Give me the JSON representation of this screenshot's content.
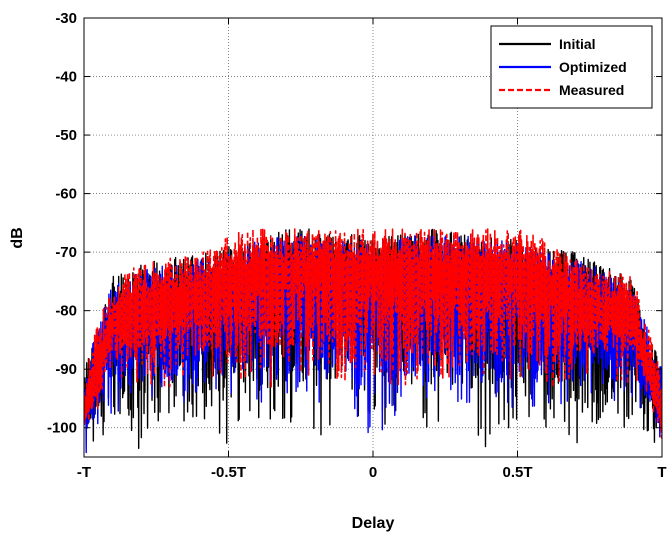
{
  "chart_data": {
    "type": "line",
    "title": "",
    "xlabel": "Delay",
    "ylabel": "dB",
    "xlim": [
      -1,
      1
    ],
    "ylim": [
      -105,
      -30
    ],
    "x_ticks": [
      -1,
      -0.5,
      0,
      0.5,
      1
    ],
    "x_tick_labels": [
      "-T",
      "-0.5T",
      "0",
      "0.5T",
      "T"
    ],
    "y_ticks": [
      -100,
      -90,
      -80,
      -70,
      -60,
      -50,
      -40,
      -30
    ],
    "y_tick_labels": [
      "-100",
      "-90",
      "-80",
      "-70",
      "-60",
      "-50",
      "-40",
      "-30"
    ],
    "grid": true,
    "legend_position": "top-right",
    "series": [
      {
        "name": "Initial",
        "color": "#000000",
        "style": "solid",
        "x": [
          -1.0,
          -0.9,
          -0.8,
          -0.7,
          -0.6,
          -0.5,
          -0.4,
          -0.3,
          -0.2,
          -0.1,
          0.0,
          0.1,
          0.2,
          0.3,
          0.4,
          0.5,
          0.6,
          0.7,
          0.8,
          0.9,
          1.0
        ],
        "y_max": [
          -90,
          -74,
          -72,
          -71,
          -70,
          -69,
          -68,
          -66,
          -66,
          -67,
          -67,
          -67,
          -66,
          -66,
          -67,
          -68,
          -69,
          -70,
          -72,
          -75,
          -90
        ],
        "y_min": [
          -105,
          -100,
          -104,
          -100,
          -100,
          -103,
          -100,
          -100,
          -104,
          -100,
          -100,
          -100,
          -100,
          -100,
          -104,
          -100,
          -100,
          -104,
          -100,
          -100,
          -105
        ]
      },
      {
        "name": "Optimized",
        "color": "#0000ff",
        "style": "solid",
        "x": [
          -1.0,
          -0.9,
          -0.8,
          -0.7,
          -0.6,
          -0.5,
          -0.4,
          -0.3,
          -0.2,
          -0.1,
          0.0,
          0.1,
          0.2,
          0.3,
          0.4,
          0.5,
          0.6,
          0.7,
          0.8,
          0.9,
          1.0
        ],
        "y_max": [
          -90,
          -75,
          -73,
          -72,
          -71,
          -70,
          -68,
          -67,
          -67,
          -68,
          -68,
          -67,
          -67,
          -67,
          -68,
          -68,
          -70,
          -71,
          -73,
          -76,
          -90
        ],
        "y_min": [
          -105,
          -98,
          -96,
          -97,
          -96,
          -95,
          -96,
          -95,
          -97,
          -96,
          -104,
          -96,
          -95,
          -96,
          -96,
          -97,
          -96,
          -96,
          -97,
          -95,
          -105
        ]
      },
      {
        "name": "Measured",
        "color": "#ff0000",
        "style": "dashed",
        "x": [
          -1.0,
          -0.9,
          -0.8,
          -0.7,
          -0.6,
          -0.5,
          -0.4,
          -0.3,
          -0.2,
          -0.1,
          0.0,
          0.1,
          0.2,
          0.3,
          0.4,
          0.5,
          0.6,
          0.7,
          0.8,
          0.9,
          1.0
        ],
        "y_max": [
          -90,
          -74,
          -72,
          -71,
          -70,
          -67,
          -66,
          -66,
          -66,
          -66,
          -66,
          -66,
          -66,
          -66,
          -66,
          -66,
          -68,
          -71,
          -73,
          -74,
          -90
        ],
        "y_min": [
          -105,
          -93,
          -92,
          -94,
          -91,
          -92,
          -94,
          -92,
          -91,
          -93,
          -92,
          -94,
          -92,
          -91,
          -93,
          -92,
          -94,
          -92,
          -91,
          -93,
          -105
        ]
      }
    ]
  }
}
